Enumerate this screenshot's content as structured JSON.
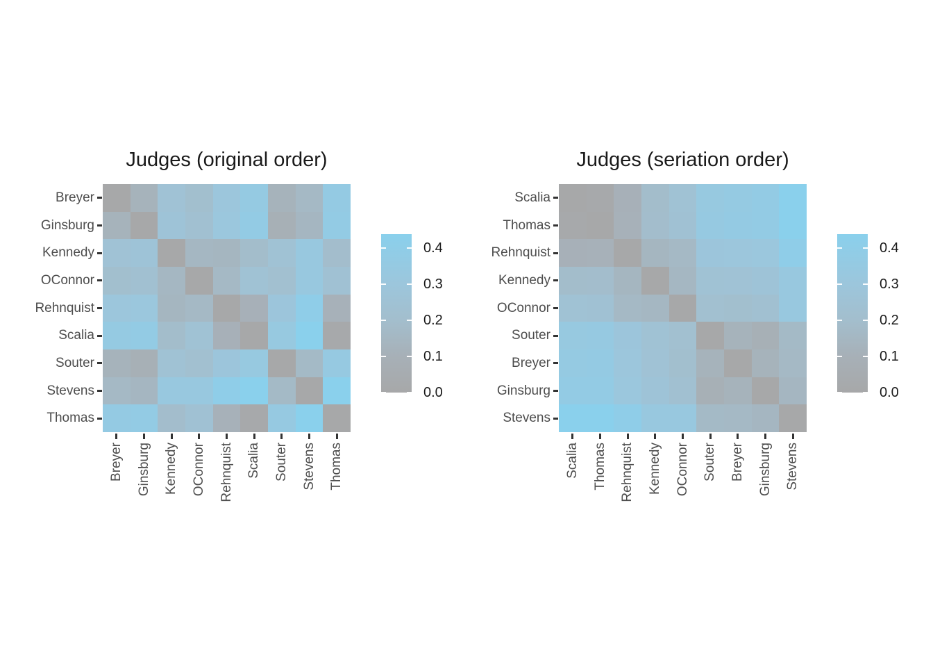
{
  "page": {
    "background": "#FFFFFF",
    "text_color": "#1A1A1A",
    "axis_label_color": "#4D4D4D",
    "tick_color": "#333333"
  },
  "color_scale": {
    "low": "#A7A8A9",
    "high": "#8AD0EC",
    "domain": [
      0,
      0.438
    ],
    "stops": [
      [
        0.0,
        "#A7A8A9"
      ],
      [
        0.1,
        "#A7B0B7"
      ],
      [
        0.2,
        "#A3BECD"
      ],
      [
        0.3,
        "#9CC6DC"
      ],
      [
        0.438,
        "#8AD0EC"
      ]
    ]
  },
  "chart_data": [
    {
      "type": "heatmap",
      "title": "Judges (original order)",
      "x_labels": [
        "Breyer",
        "Ginsburg",
        "Kennedy",
        "OConnor",
        "Rehnquist",
        "Scalia",
        "Souter",
        "Stevens",
        "Thomas"
      ],
      "y_labels": [
        "Breyer",
        "Ginsburg",
        "Kennedy",
        "OConnor",
        "Rehnquist",
        "Scalia",
        "Souter",
        "Stevens",
        "Thomas"
      ],
      "matrix": [
        [
          0,
          0.12,
          0.25,
          0.209,
          0.299,
          0.353,
          0.118,
          0.162,
          0.359
        ],
        [
          0.12,
          0,
          0.267,
          0.226,
          0.308,
          0.37,
          0.096,
          0.145,
          0.368
        ],
        [
          0.25,
          0.267,
          0,
          0.149,
          0.142,
          0.19,
          0.248,
          0.327,
          0.196
        ],
        [
          0.209,
          0.226,
          0.149,
          0,
          0.162,
          0.246,
          0.22,
          0.329,
          0.243
        ],
        [
          0.299,
          0.308,
          0.142,
          0.162,
          0,
          0.103,
          0.293,
          0.402,
          0.108
        ],
        [
          0.353,
          0.37,
          0.19,
          0.246,
          0.103,
          0,
          0.338,
          0.438,
          0.014
        ],
        [
          0.118,
          0.096,
          0.248,
          0.22,
          0.293,
          0.338,
          0,
          0.169,
          0.344
        ],
        [
          0.162,
          0.145,
          0.327,
          0.329,
          0.402,
          0.438,
          0.169,
          0,
          0.436
        ],
        [
          0.359,
          0.368,
          0.196,
          0.243,
          0.108,
          0.014,
          0.344,
          0.436,
          0
        ]
      ],
      "legend": {
        "tick_labels": [
          "0.4",
          "0.3",
          "0.2",
          "0.1",
          "0.0"
        ],
        "tick_values": [
          0.4,
          0.3,
          0.2,
          0.1,
          0.0
        ]
      },
      "grid": false,
      "legend_position": "right"
    },
    {
      "type": "heatmap",
      "title": "Judges (seriation order)",
      "x_labels": [
        "Scalia",
        "Thomas",
        "Rehnquist",
        "Kennedy",
        "OConnor",
        "Souter",
        "Breyer",
        "Ginsburg",
        "Stevens"
      ],
      "y_labels": [
        "Scalia",
        "Thomas",
        "Rehnquist",
        "Kennedy",
        "OConnor",
        "Souter",
        "Breyer",
        "Ginsburg",
        "Stevens"
      ],
      "matrix": [
        [
          0,
          0.014,
          0.103,
          0.19,
          0.246,
          0.338,
          0.353,
          0.37,
          0.438
        ],
        [
          0.014,
          0,
          0.108,
          0.196,
          0.243,
          0.344,
          0.359,
          0.368,
          0.436
        ],
        [
          0.103,
          0.108,
          0,
          0.142,
          0.162,
          0.293,
          0.299,
          0.308,
          0.402
        ],
        [
          0.19,
          0.196,
          0.142,
          0,
          0.149,
          0.248,
          0.25,
          0.267,
          0.327
        ],
        [
          0.246,
          0.243,
          0.162,
          0.149,
          0,
          0.22,
          0.209,
          0.226,
          0.329
        ],
        [
          0.338,
          0.344,
          0.293,
          0.248,
          0.22,
          0,
          0.118,
          0.096,
          0.169
        ],
        [
          0.353,
          0.359,
          0.299,
          0.25,
          0.209,
          0.118,
          0,
          0.12,
          0.162
        ],
        [
          0.37,
          0.368,
          0.308,
          0.267,
          0.226,
          0.096,
          0.12,
          0,
          0.145
        ],
        [
          0.438,
          0.436,
          0.402,
          0.327,
          0.329,
          0.169,
          0.162,
          0.145,
          0
        ]
      ],
      "legend": {
        "tick_labels": [
          "0.4",
          "0.3",
          "0.2",
          "0.1",
          "0.0"
        ],
        "tick_values": [
          0.4,
          0.3,
          0.2,
          0.1,
          0.0
        ]
      },
      "grid": false,
      "legend_position": "right"
    }
  ]
}
